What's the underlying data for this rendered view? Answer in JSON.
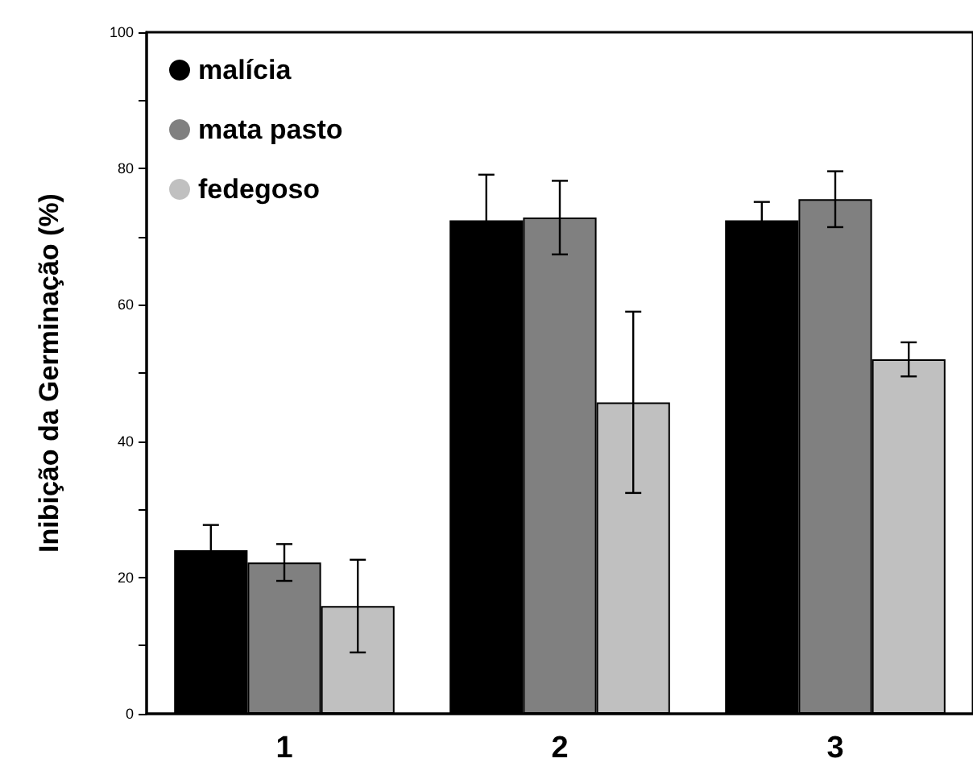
{
  "chart_data": {
    "type": "bar",
    "ylabel": "Inibição da Germinação (%)",
    "categories": [
      "1",
      "2",
      "3"
    ],
    "series": [
      {
        "name": "malícia",
        "color": "#000000",
        "values": [
          24.0,
          72.4,
          72.4
        ],
        "errors": [
          3.7,
          6.7,
          2.7
        ]
      },
      {
        "name": "mata pasto",
        "color": "#808080",
        "values": [
          22.2,
          72.8,
          75.5
        ],
        "errors": [
          2.7,
          5.4,
          4.1
        ]
      },
      {
        "name": "fedegoso",
        "color": "#c0c0c0",
        "values": [
          15.8,
          45.7,
          52.0
        ],
        "errors": [
          6.8,
          13.3,
          2.5
        ]
      }
    ],
    "ylim": [
      0,
      100
    ],
    "yticks": [
      0,
      {
        "value": 10,
        "label": null
      },
      20,
      {
        "value": 30,
        "label": null
      },
      40,
      {
        "value": 50,
        "label": null
      },
      60,
      {
        "value": 70,
        "label": null
      },
      80,
      {
        "value": 90,
        "label": null
      },
      100
    ],
    "grid": false,
    "legend": "top left",
    "marker": "circle"
  }
}
